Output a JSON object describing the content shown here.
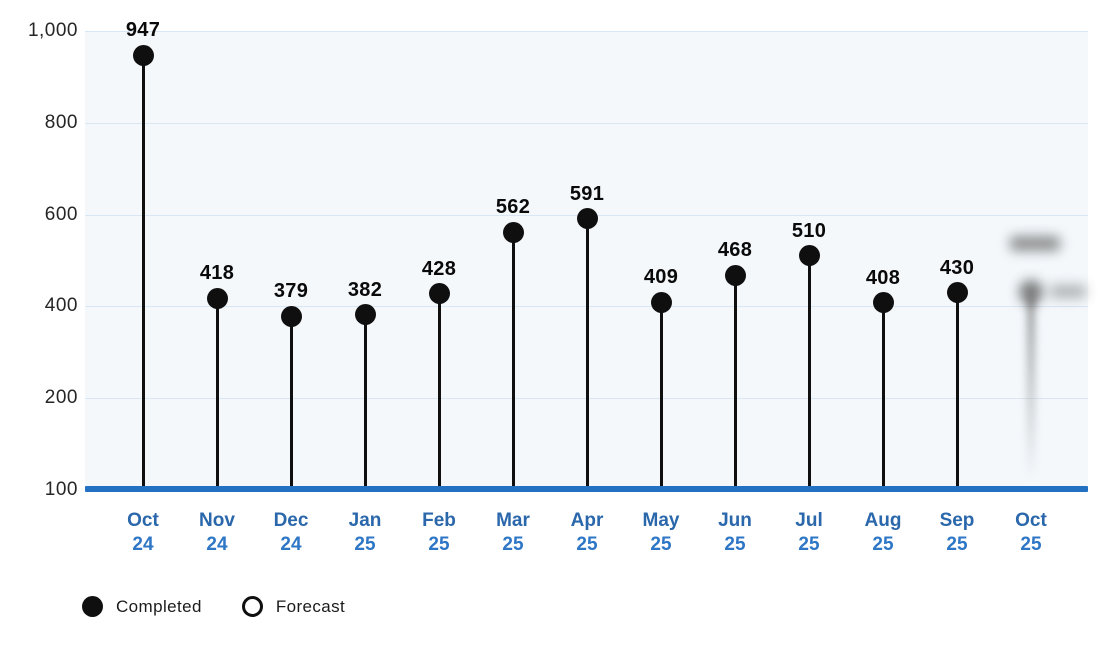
{
  "chart_data": {
    "type": "lollipop",
    "title": "",
    "categories": [
      {
        "month": "Oct",
        "year": "24"
      },
      {
        "month": "Nov",
        "year": "24"
      },
      {
        "month": "Dec",
        "year": "24"
      },
      {
        "month": "Jan",
        "year": "25"
      },
      {
        "month": "Feb",
        "year": "25"
      },
      {
        "month": "Mar",
        "year": "25"
      },
      {
        "month": "Apr",
        "year": "25"
      },
      {
        "month": "May",
        "year": "25"
      },
      {
        "month": "Jun",
        "year": "25"
      },
      {
        "month": "Jul",
        "year": "25"
      },
      {
        "month": "Aug",
        "year": "25"
      },
      {
        "month": "Sep",
        "year": "25"
      },
      {
        "month": "Oct",
        "year": "25"
      }
    ],
    "series": [
      {
        "name": "Completed",
        "marker": "filled-circle",
        "values": [
          947,
          418,
          379,
          382,
          428,
          562,
          591,
          409,
          468,
          510,
          408,
          430,
          null
        ]
      },
      {
        "name": "Forecast",
        "marker": "open-circle",
        "values": [
          null,
          null,
          null,
          null,
          null,
          null,
          null,
          null,
          null,
          null,
          null,
          null,
          null
        ],
        "note": "Oct 25 forecast lollipop and its value label are blurred/unreadable in the screenshot"
      }
    ],
    "y_axis": {
      "tick_labels": [
        "1,000",
        "800",
        "600",
        "400",
        "200",
        "100"
      ],
      "tick_values": [
        1000,
        800,
        600,
        400,
        200,
        100
      ],
      "evenly_spaced_ticks": true
    },
    "grid": "horizontal",
    "legend_position": "bottom-left",
    "legend": [
      {
        "label": "Completed",
        "marker": "filled-circle"
      },
      {
        "label": "Forecast",
        "marker": "open-circle"
      }
    ]
  },
  "colors": {
    "data_black": "#0f0f0f",
    "axis_baseline_blue": "#2271c3",
    "month_label_blue": "#2a67ab",
    "year_label_blue": "#2e76c6",
    "gridline": "#d9e7f4",
    "plot_background": "#f4f8fb",
    "y_tick_text": "#262626",
    "legend_text": "#1b1b1b"
  }
}
